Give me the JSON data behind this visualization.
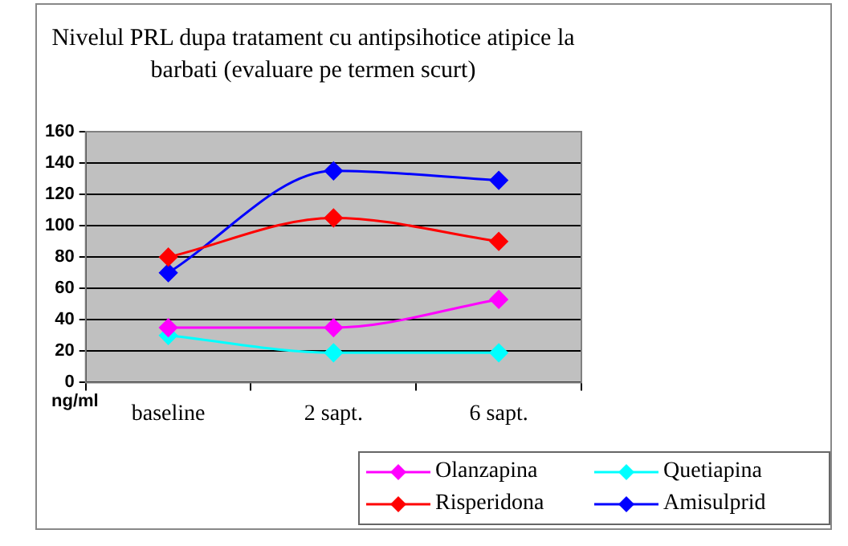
{
  "chart_data": {
    "type": "line",
    "title": "Nivelul PRL dupa tratament cu antipsihotice atipice la barbati (evaluare pe termen scurt)",
    "ylabel": "ng/ml",
    "categories": [
      "baseline",
      "2 sapt.",
      "6 sapt."
    ],
    "series": [
      {
        "name": "Olanzapina",
        "color": "#ff00ff",
        "values": [
          35,
          35,
          53
        ]
      },
      {
        "name": "Quetiapina",
        "color": "#00ffff",
        "values": [
          30,
          19,
          19
        ]
      },
      {
        "name": "Risperidona",
        "color": "#ff0000",
        "values": [
          80,
          105,
          90
        ]
      },
      {
        "name": "Amisulprid",
        "color": "#0000ff",
        "values": [
          70,
          135,
          129
        ]
      }
    ],
    "ylim": [
      0,
      160
    ],
    "yticks": [
      0,
      20,
      40,
      60,
      80,
      100,
      120,
      140,
      160
    ],
    "grid": "y",
    "legend": "bottom right",
    "marker": "diamond",
    "line_style": "solid"
  }
}
